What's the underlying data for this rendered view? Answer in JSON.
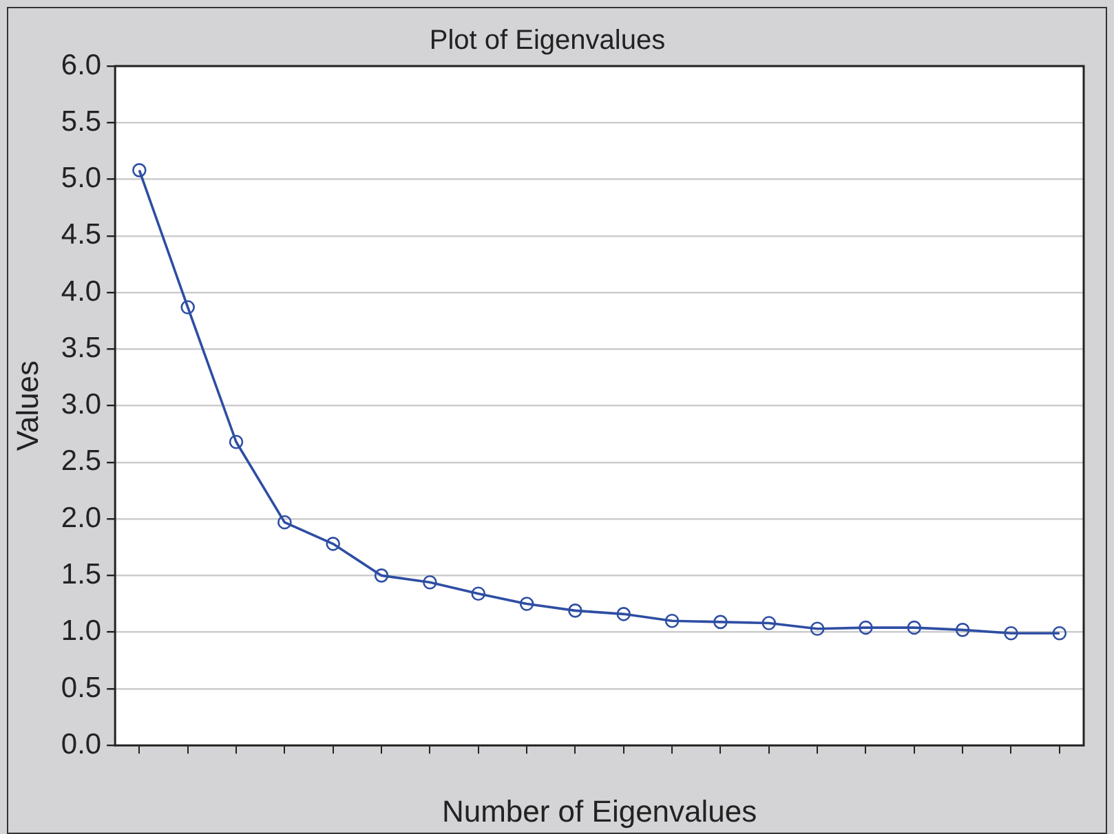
{
  "chart_data": {
    "type": "line",
    "title": "Plot of Eigenvalues",
    "xlabel": "Number of Eigenvalues",
    "ylabel": "Values",
    "categories": [
      null,
      null,
      null,
      null,
      null,
      null,
      null,
      null,
      null,
      null,
      null,
      null,
      null,
      null,
      null,
      null,
      null,
      null,
      null,
      null
    ],
    "series": [
      {
        "color": "#2e4ea3",
        "values": [
          5.08,
          3.87,
          2.68,
          1.97,
          1.78,
          1.5,
          1.44,
          1.34,
          1.25,
          1.19,
          1.16,
          1.1,
          1.09,
          1.08,
          1.03,
          1.04,
          1.04,
          1.02,
          0.99,
          0.99
        ]
      }
    ],
    "ylim": [
      0,
      6
    ],
    "yticks": [
      {
        "value": 0,
        "label": "0.0"
      },
      0.5,
      {
        "value": 1,
        "label": "1.0"
      },
      1.5,
      {
        "value": 2,
        "label": "2.0"
      },
      2.5,
      {
        "value": 3,
        "label": "3.0"
      },
      3.5,
      {
        "value": 4,
        "label": "4.0"
      },
      4.5,
      {
        "value": 5,
        "label": "5.0"
      },
      5.5,
      {
        "value": 6,
        "label": "6.0"
      }
    ],
    "grid": "y",
    "tick_labels": "y",
    "marker": "circle",
    "line_style": "solid",
    "legend": false
  }
}
